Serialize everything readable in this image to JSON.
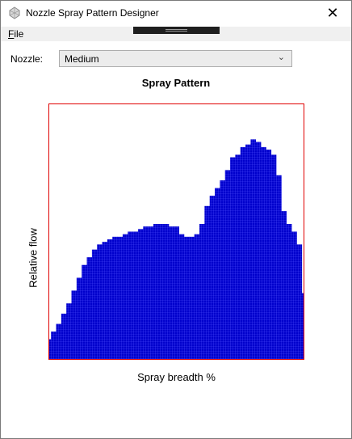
{
  "window": {
    "title": "Nozzle Spray Pattern Designer",
    "icon": "app-icon",
    "close_glyph": "✕"
  },
  "menu": {
    "file_label": "File",
    "file_mnemonic": "F",
    "file_rest": "ile"
  },
  "nozzle": {
    "label": "Nozzle:",
    "selected": "Medium",
    "chevron_icon": "chevron-down-icon"
  },
  "colors": {
    "fill": "#0000cc",
    "grid": "#5a5aff",
    "border": "#e00000"
  },
  "chart_data": {
    "type": "area",
    "title": "Spray Pattern",
    "xlabel": "Spray breadth %",
    "ylabel": "Relative flow",
    "xlim": [
      0,
      100
    ],
    "ylim": [
      0,
      100
    ],
    "grid": false,
    "x": [
      0,
      2,
      4,
      6,
      8,
      10,
      12,
      14,
      16,
      18,
      20,
      22,
      24,
      26,
      28,
      30,
      32,
      34,
      36,
      38,
      40,
      42,
      44,
      46,
      48,
      50,
      52,
      54,
      56,
      58,
      60,
      62,
      64,
      66,
      68,
      70,
      72,
      74,
      76,
      78,
      80,
      82,
      84,
      86,
      88,
      90,
      92,
      94,
      96,
      98,
      100
    ],
    "values": [
      8,
      11,
      14,
      18,
      22,
      27,
      32,
      37,
      40,
      43,
      45,
      46,
      47,
      48,
      48,
      49,
      50,
      50,
      51,
      52,
      52,
      53,
      53,
      53,
      52,
      52,
      49,
      48,
      48,
      49,
      53,
      60,
      64,
      67,
      70,
      74,
      79,
      80,
      83,
      84,
      86,
      85,
      83,
      82,
      80,
      72,
      58,
      53,
      50,
      45,
      26
    ]
  }
}
